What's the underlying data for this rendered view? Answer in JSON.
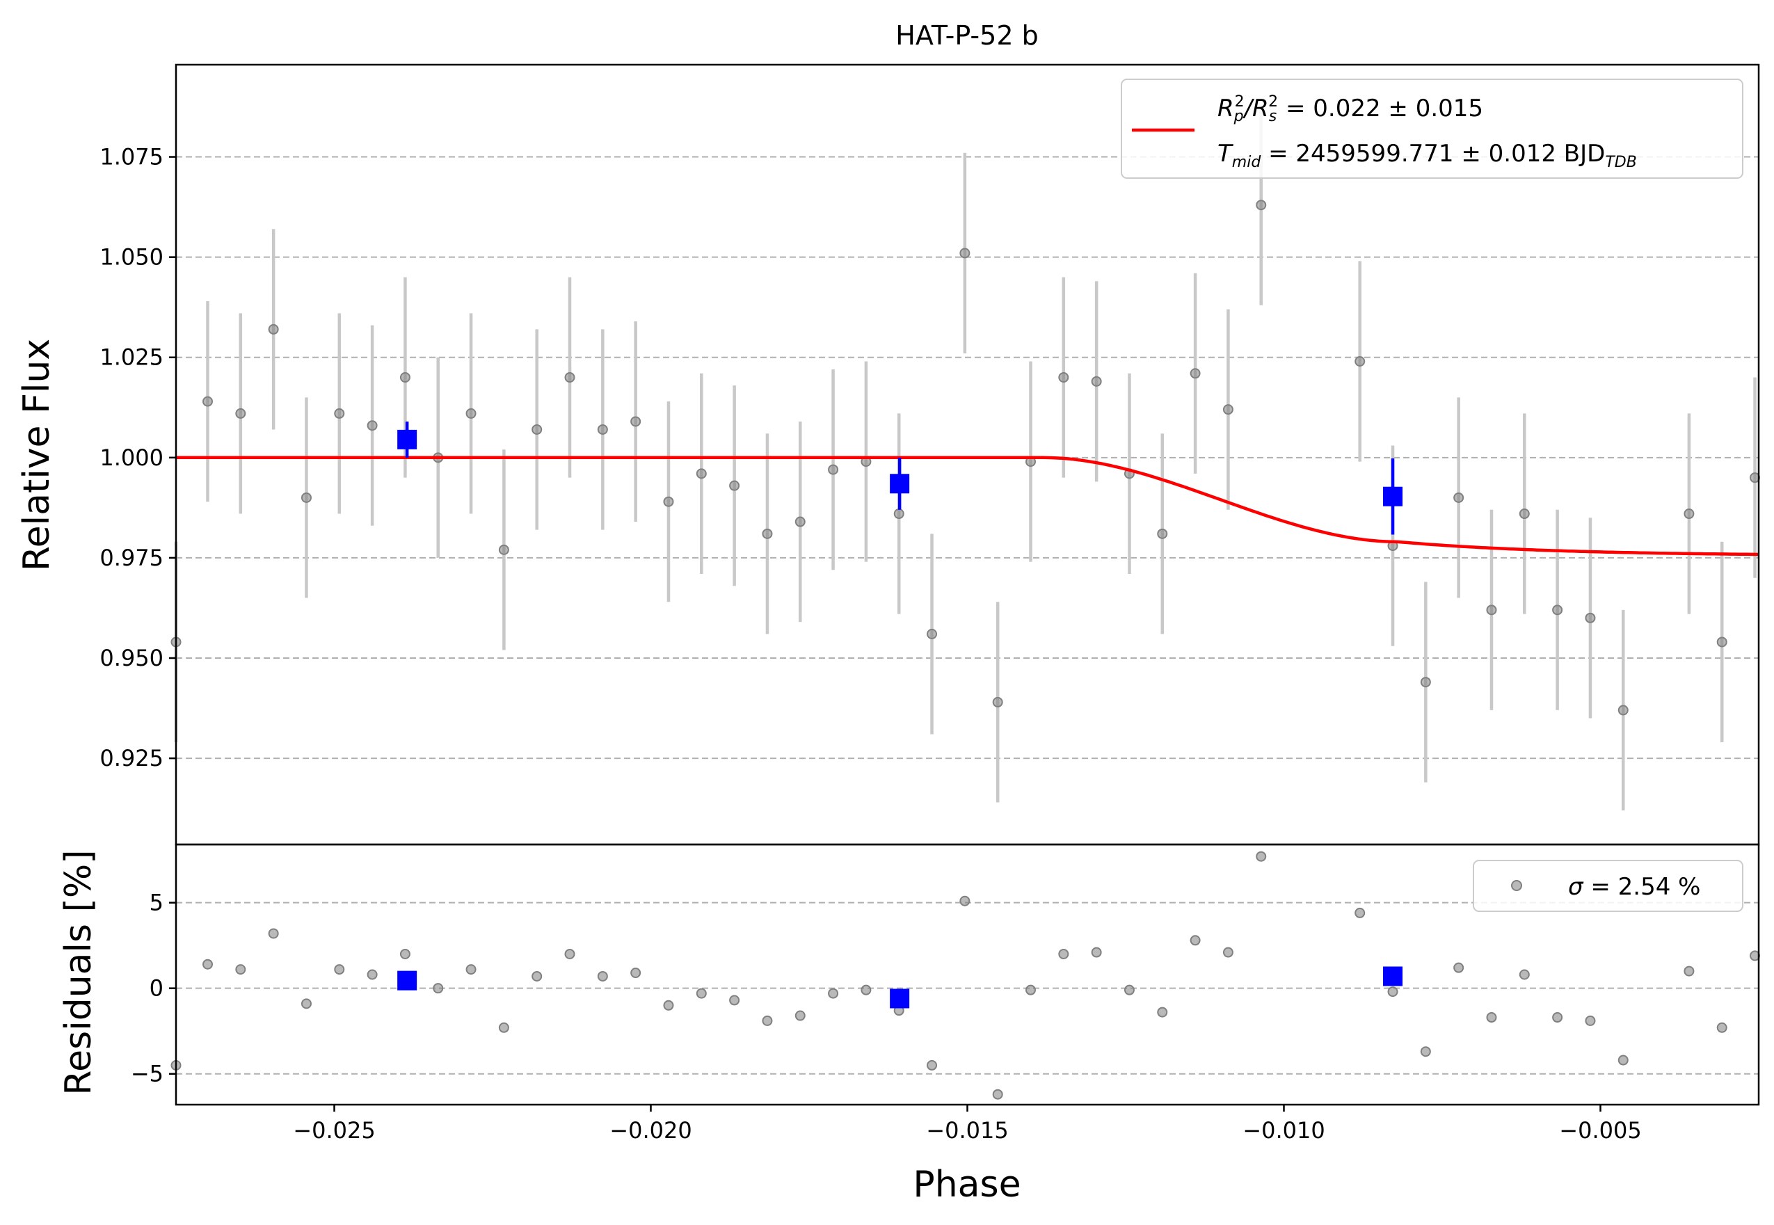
{
  "chart_data": [
    {
      "type": "scatter",
      "panel": "light-curve",
      "title": "HAT-P-52 b",
      "xlabel": "",
      "ylabel": "Relative Flux",
      "xlim": [
        -0.0275,
        -0.0025
      ],
      "ylim": [
        0.9035,
        1.098
      ],
      "yticks": [
        0.925,
        0.95,
        0.975,
        1.0,
        1.025,
        1.05,
        1.075
      ],
      "ytick_labels": [
        "0.925",
        "0.950",
        "0.975",
        "1.000",
        "1.025",
        "1.050",
        "1.075"
      ],
      "grid": "horizontal dashed",
      "legend_position": "top-right",
      "legend": {
        "line1": {
          "prefix": "R",
          "sub1": "p",
          "sup1": "2",
          "mid": "/R",
          "sub2": "s",
          "sup2": "2",
          "rest": " = 0.022 ± 0.015"
        },
        "line2": {
          "prefix": "T",
          "sub1": "mid",
          "rest": " = 2459599.771 ± 0.012 BJD",
          "sub2": "TDB"
        }
      },
      "data_points": {
        "x": [
          -0.0275,
          -0.027,
          -0.02648,
          -0.02596,
          -0.02544,
          -0.02492,
          -0.0244,
          -0.02388,
          -0.02336,
          -0.02284,
          -0.02232,
          -0.0218,
          -0.02128,
          -0.02076,
          -0.02024,
          -0.01972,
          -0.0192,
          -0.01868,
          -0.01816,
          -0.01764,
          -0.01712,
          -0.0166,
          -0.01608,
          -0.01556,
          -0.01504,
          -0.01452,
          -0.014,
          -0.01348,
          -0.01296,
          -0.01244,
          -0.01192,
          -0.0114,
          -0.01088,
          -0.01036,
          -0.00984,
          -0.00932,
          -0.0088,
          -0.00828,
          -0.00776,
          -0.00724,
          -0.00672,
          -0.0062,
          -0.00568,
          -0.00516,
          -0.00464,
          -0.00412,
          -0.0036,
          -0.00308,
          -0.00256
        ],
        "y": [
          0.954,
          1.014,
          1.011,
          1.032,
          0.99,
          1.011,
          1.008,
          1.02,
          1.0,
          1.011,
          0.977,
          1.007,
          1.02,
          1.007,
          1.009,
          0.989,
          0.996,
          0.993,
          0.981,
          0.984,
          0.997,
          0.999,
          0.986,
          0.956,
          1.051,
          0.939,
          0.999,
          1.02,
          1.019,
          0.996,
          0.981,
          1.021,
          1.012,
          1.063,
          null,
          null,
          1.024,
          0.978,
          0.944,
          0.99,
          0.962,
          0.986,
          0.962,
          0.96,
          0.937,
          null,
          0.986,
          0.954,
          0.995
        ],
        "yerr": 0.025
      },
      "binned_points": {
        "x": [
          -0.02385,
          -0.01607,
          -0.00828
        ],
        "y": [
          1.0045,
          0.9935,
          0.9903
        ],
        "yerr": [
          0.0045,
          0.0065,
          0.0095
        ]
      },
      "model": {
        "name": "",
        "color": "#ff0000",
        "baseline": 1.0,
        "depth": 0.0245,
        "ingress_start": -0.0138,
        "ingress_end": -0.0082
      },
      "colors": {
        "data": "#808080",
        "errorbar": "#c8c8c8",
        "binned": "#0000ff",
        "model": "#ff0000"
      }
    },
    {
      "type": "scatter",
      "panel": "residuals",
      "title": "",
      "xlabel": "Phase",
      "ylabel": "Residuals [%]",
      "xlim": [
        -0.0275,
        -0.0025
      ],
      "ylim": [
        -6.8,
        8.4
      ],
      "yticks": [
        -5,
        0,
        5
      ],
      "ytick_labels": [
        "−5",
        "0",
        "5"
      ],
      "xticks": [
        -0.025,
        -0.02,
        -0.015,
        -0.01,
        -0.005
      ],
      "xtick_labels": [
        "−0.025",
        "−0.020",
        "−0.015",
        "−0.010",
        "−0.005"
      ],
      "grid": "horizontal dashed",
      "legend_position": "top-right",
      "legend": {
        "sigma_symbol": "σ",
        "text": " = 2.54 %"
      },
      "residuals": {
        "x": [
          -0.0275,
          -0.027,
          -0.02648,
          -0.02596,
          -0.02544,
          -0.02492,
          -0.0244,
          -0.02388,
          -0.02336,
          -0.02284,
          -0.02232,
          -0.0218,
          -0.02128,
          -0.02076,
          -0.02024,
          -0.01972,
          -0.0192,
          -0.01868,
          -0.01816,
          -0.01764,
          -0.01712,
          -0.0166,
          -0.01608,
          -0.01556,
          -0.01504,
          -0.01452,
          -0.014,
          -0.01348,
          -0.01296,
          -0.01244,
          -0.01192,
          -0.0114,
          -0.01088,
          -0.01036,
          -0.0088,
          -0.00828,
          -0.00776,
          -0.00724,
          -0.00672,
          -0.0062,
          -0.00568,
          -0.00516,
          -0.00464,
          -0.0036,
          -0.00308,
          -0.00256
        ],
        "y": [
          -4.5,
          1.4,
          1.1,
          3.2,
          -0.9,
          1.1,
          0.8,
          2.0,
          0.0,
          1.1,
          -2.3,
          0.7,
          2.0,
          0.7,
          0.9,
          -1.0,
          -0.3,
          -0.7,
          -1.9,
          -1.6,
          -0.3,
          -0.1,
          -1.3,
          -4.5,
          5.1,
          -6.2,
          -0.1,
          2.0,
          2.1,
          -0.1,
          -1.4,
          2.8,
          2.1,
          7.7,
          4.4,
          -0.2,
          -3.7,
          1.2,
          -1.7,
          0.8,
          -1.7,
          -1.9,
          -4.2,
          1.0,
          -2.3,
          1.9
        ]
      },
      "binned_residuals": {
        "x": [
          -0.02385,
          -0.01607,
          -0.00828
        ],
        "y": [
          0.45,
          -0.6,
          0.7
        ]
      }
    }
  ]
}
